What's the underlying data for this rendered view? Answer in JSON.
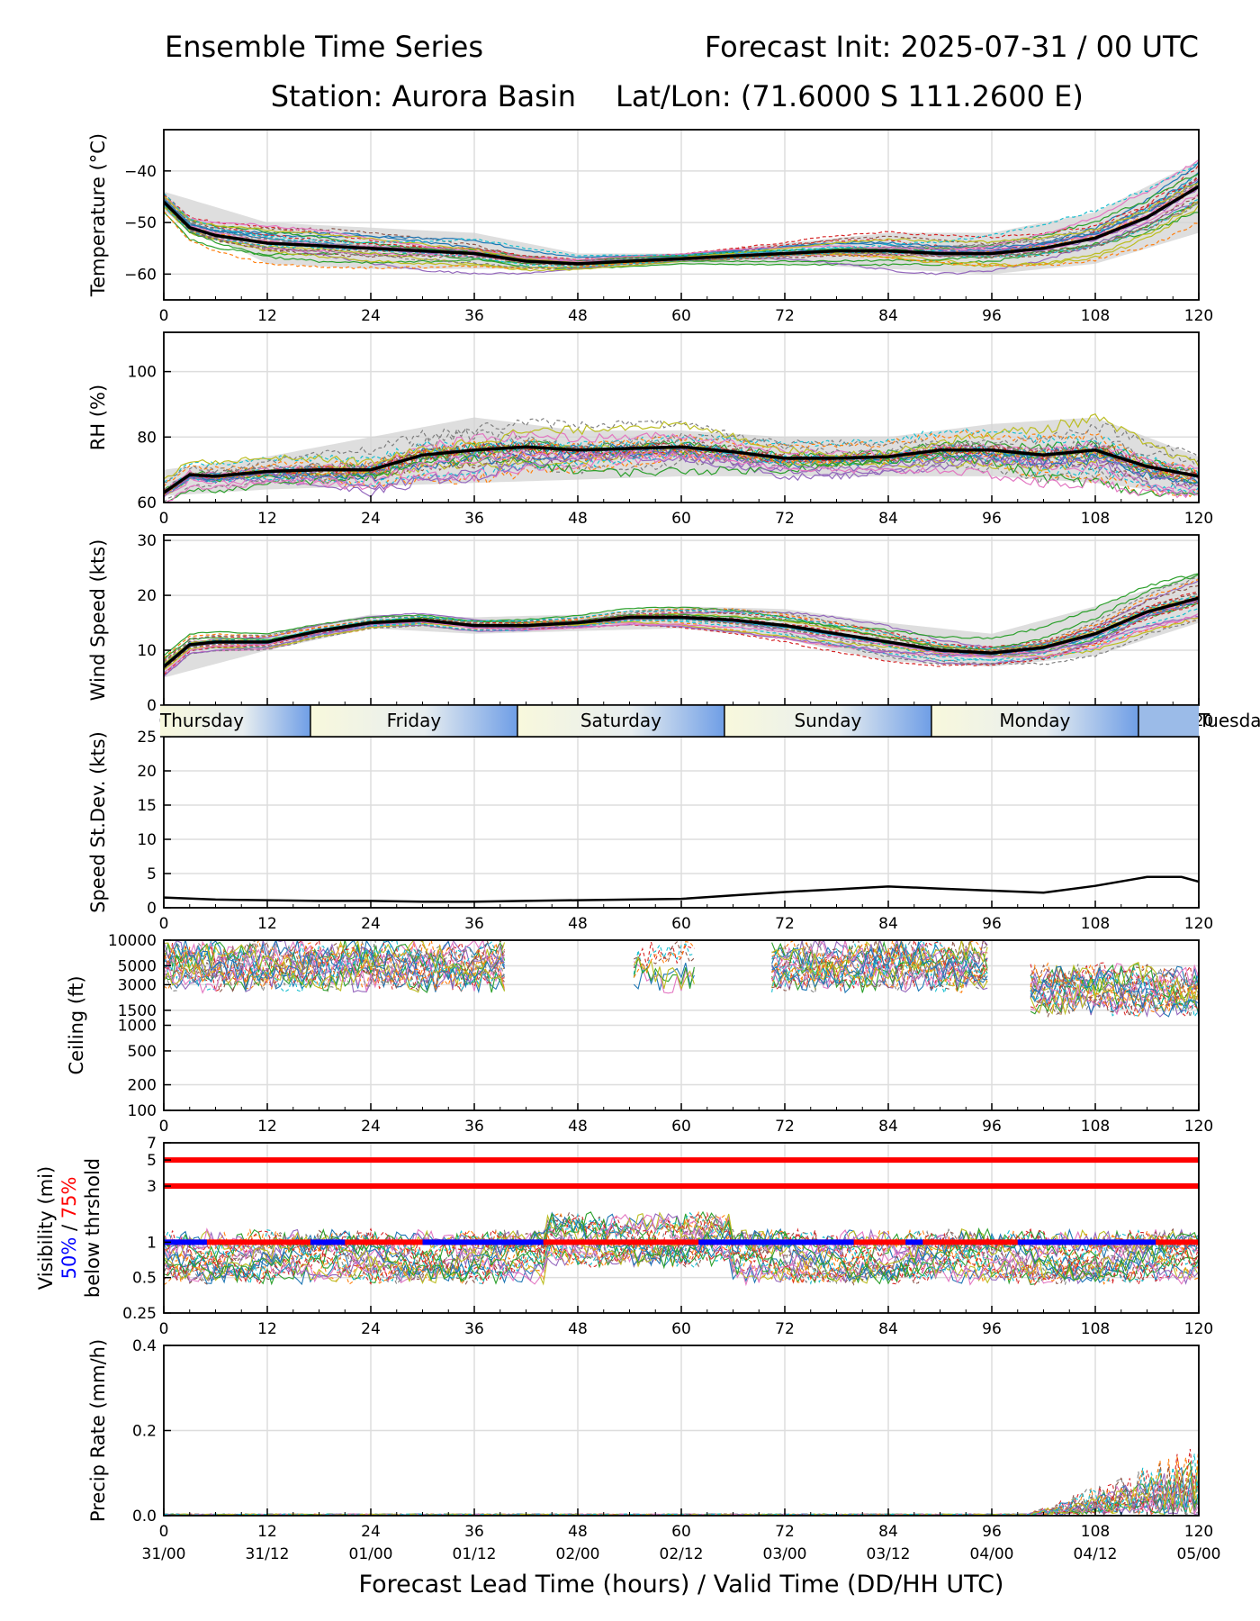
{
  "header": {
    "title_left": "Ensemble Time Series",
    "title_right": "Forecast Init: 2025-07-31 / 00 UTC",
    "station": "Station: Aurora Basin",
    "latlon": "Lat/Lon: (71.6000 S 111.2600 E)"
  },
  "colors": {
    "mean": "#000000",
    "spread": "#d3d3d3",
    "threshold_75": "#ff0000",
    "threshold_50": "#0000ff",
    "members": [
      "#1f77b4",
      "#ff7f0e",
      "#2ca02c",
      "#d62728",
      "#9467bd",
      "#8c564b",
      "#e377c2",
      "#7f7f7f",
      "#bcbd22",
      "#17becf"
    ]
  },
  "x_axis": {
    "label": "Forecast Lead Time (hours) / Valid Time (DD/HH UTC)",
    "lead_ticks": [
      "0",
      "12",
      "24",
      "36",
      "48",
      "60",
      "72",
      "84",
      "96",
      "108",
      "120"
    ],
    "valid_ticks": [
      "31/00",
      "31/12",
      "01/00",
      "01/12",
      "02/00",
      "02/12",
      "03/00",
      "03/12",
      "04/00",
      "04/12",
      "05/00"
    ],
    "range": [
      0,
      120
    ]
  },
  "day_band": {
    "days": [
      "Thursday",
      "Friday",
      "Saturday",
      "Sunday",
      "Monday",
      "Tuesday"
    ],
    "boundaries_hours": [
      17,
      41,
      65,
      89,
      113
    ]
  },
  "chart_data": [
    {
      "type": "line",
      "id": "temperature",
      "ylabel": "Temperature (°C)",
      "ylim": [
        -65,
        -32
      ],
      "y_ticks": [
        "−40",
        "−50",
        "−60"
      ],
      "y_tick_values": [
        -40,
        -50,
        -60
      ],
      "grid": true,
      "series": [
        {
          "kind": "mean",
          "x": [
            0,
            3,
            6,
            12,
            18,
            24,
            30,
            36,
            42,
            48,
            54,
            60,
            66,
            72,
            78,
            84,
            90,
            96,
            102,
            108,
            114,
            120
          ],
          "values": [
            -46,
            -51,
            -52.5,
            -54,
            -54.5,
            -55,
            -55.5,
            -56,
            -57.5,
            -58,
            -57.5,
            -57,
            -56.5,
            -56,
            -55.5,
            -55.5,
            -56,
            -56,
            -55,
            -53,
            -49,
            -43
          ]
        },
        {
          "kind": "spread",
          "x": [
            0,
            12,
            24,
            36,
            48,
            60,
            72,
            84,
            96,
            108,
            120
          ],
          "upper": [
            -44,
            -50,
            -51,
            -52,
            -56,
            -56,
            -54,
            -52,
            -52,
            -48,
            -38
          ],
          "lower": [
            -48,
            -58,
            -59,
            -59,
            -59,
            -58,
            -58,
            -59,
            -60,
            -58,
            -52
          ]
        }
      ]
    },
    {
      "type": "line",
      "id": "rh",
      "ylabel": "RH (%)",
      "ylim": [
        60,
        112
      ],
      "y_ticks": [
        "100",
        "80",
        "60"
      ],
      "y_tick_values": [
        100,
        80,
        60
      ],
      "grid": true,
      "series": [
        {
          "kind": "mean",
          "x": [
            0,
            3,
            6,
            12,
            18,
            24,
            30,
            36,
            42,
            48,
            54,
            60,
            66,
            72,
            78,
            84,
            90,
            96,
            102,
            108,
            114,
            120
          ],
          "values": [
            63,
            68.5,
            68,
            69.5,
            70,
            70,
            74.5,
            76,
            77,
            76,
            76.5,
            77,
            75.5,
            73.5,
            73.5,
            74,
            76,
            76,
            74.5,
            76,
            71,
            68
          ]
        },
        {
          "kind": "spread",
          "x": [
            0,
            12,
            24,
            36,
            48,
            60,
            72,
            84,
            96,
            108,
            120
          ],
          "upper": [
            70,
            74,
            80,
            86,
            82,
            82,
            80,
            80,
            84,
            86,
            74
          ],
          "lower": [
            62,
            64,
            65,
            66,
            67,
            68,
            68,
            68,
            68,
            66,
            62
          ]
        }
      ]
    },
    {
      "type": "line",
      "id": "wind_speed",
      "ylabel": "Wind Speed (kts)",
      "ylim": [
        0,
        31
      ],
      "y_ticks": [
        "30",
        "20",
        "10",
        "0"
      ],
      "y_tick_values": [
        30,
        20,
        10,
        0
      ],
      "grid": true,
      "series": [
        {
          "kind": "mean",
          "x": [
            0,
            3,
            6,
            12,
            18,
            24,
            30,
            36,
            42,
            48,
            54,
            60,
            66,
            72,
            78,
            84,
            90,
            96,
            102,
            108,
            114,
            120
          ],
          "values": [
            7,
            11,
            11.5,
            11.5,
            13.5,
            15,
            15.5,
            14.5,
            14.5,
            15,
            16,
            16,
            15.5,
            14.5,
            13,
            11.5,
            10,
            9.5,
            10.5,
            13,
            17,
            19.5
          ]
        },
        {
          "kind": "spread",
          "x": [
            0,
            12,
            24,
            36,
            48,
            60,
            72,
            84,
            96,
            108,
            120
          ],
          "upper": [
            9,
            13,
            16.5,
            16,
            16.5,
            18,
            17.5,
            15,
            13,
            18,
            24
          ],
          "lower": [
            5,
            10,
            14,
            13,
            13.5,
            14,
            12,
            8,
            7,
            9,
            15
          ]
        }
      ]
    },
    {
      "type": "line",
      "id": "speed_stdev",
      "ylabel": "Speed St.Dev. (kts)",
      "ylim": [
        0,
        25
      ],
      "y_ticks": [
        "25",
        "20",
        "15",
        "10",
        "5",
        "0"
      ],
      "y_tick_values": [
        25,
        20,
        15,
        10,
        5,
        0
      ],
      "grid": true,
      "series": [
        {
          "kind": "stdev",
          "x": [
            0,
            6,
            12,
            18,
            24,
            30,
            36,
            42,
            48,
            54,
            60,
            66,
            72,
            78,
            84,
            90,
            96,
            102,
            108,
            114,
            118,
            120
          ],
          "values": [
            1.5,
            1.2,
            1.1,
            1.0,
            1.0,
            0.9,
            0.9,
            1.0,
            1.1,
            1.2,
            1.3,
            1.8,
            2.3,
            2.7,
            3.1,
            2.8,
            2.5,
            2.2,
            3.2,
            4.5,
            4.5,
            3.8
          ]
        }
      ]
    },
    {
      "type": "line",
      "id": "ceiling",
      "ylabel": "Ceiling (ft)",
      "yscale": "log",
      "ylim": [
        100,
        10000
      ],
      "y_ticks": [
        "10000",
        "5000",
        "3000",
        "1500",
        "1000",
        "500",
        "200",
        "100"
      ],
      "y_tick_values": [
        10000,
        5000,
        3000,
        1500,
        1000,
        500,
        200,
        100
      ],
      "grid": true,
      "series": []
    },
    {
      "type": "line",
      "id": "visibility",
      "ylabel": "Visibility (mi)",
      "ylabel_pct_50": "50%",
      "ylabel_pct_sep": " / ",
      "ylabel_pct_75": "75%",
      "ylabel_line3": "below thrshold",
      "yscale": "log",
      "ylim": [
        0.25,
        7
      ],
      "y_ticks": [
        "7",
        "5",
        "3",
        "1",
        "0.5",
        "0.25"
      ],
      "y_tick_values": [
        7,
        5,
        3,
        1,
        0.5,
        0.25
      ],
      "thresholds": [
        1,
        3,
        5
      ],
      "grid": true,
      "series": []
    },
    {
      "type": "line",
      "id": "precip",
      "ylabel": "Precip Rate (mm/h)",
      "ylim": [
        0,
        0.4
      ],
      "y_ticks": [
        "0.4",
        "0.2",
        "0.0"
      ],
      "y_tick_values": [
        0.4,
        0.2,
        0.0
      ],
      "grid": true,
      "series": []
    }
  ]
}
